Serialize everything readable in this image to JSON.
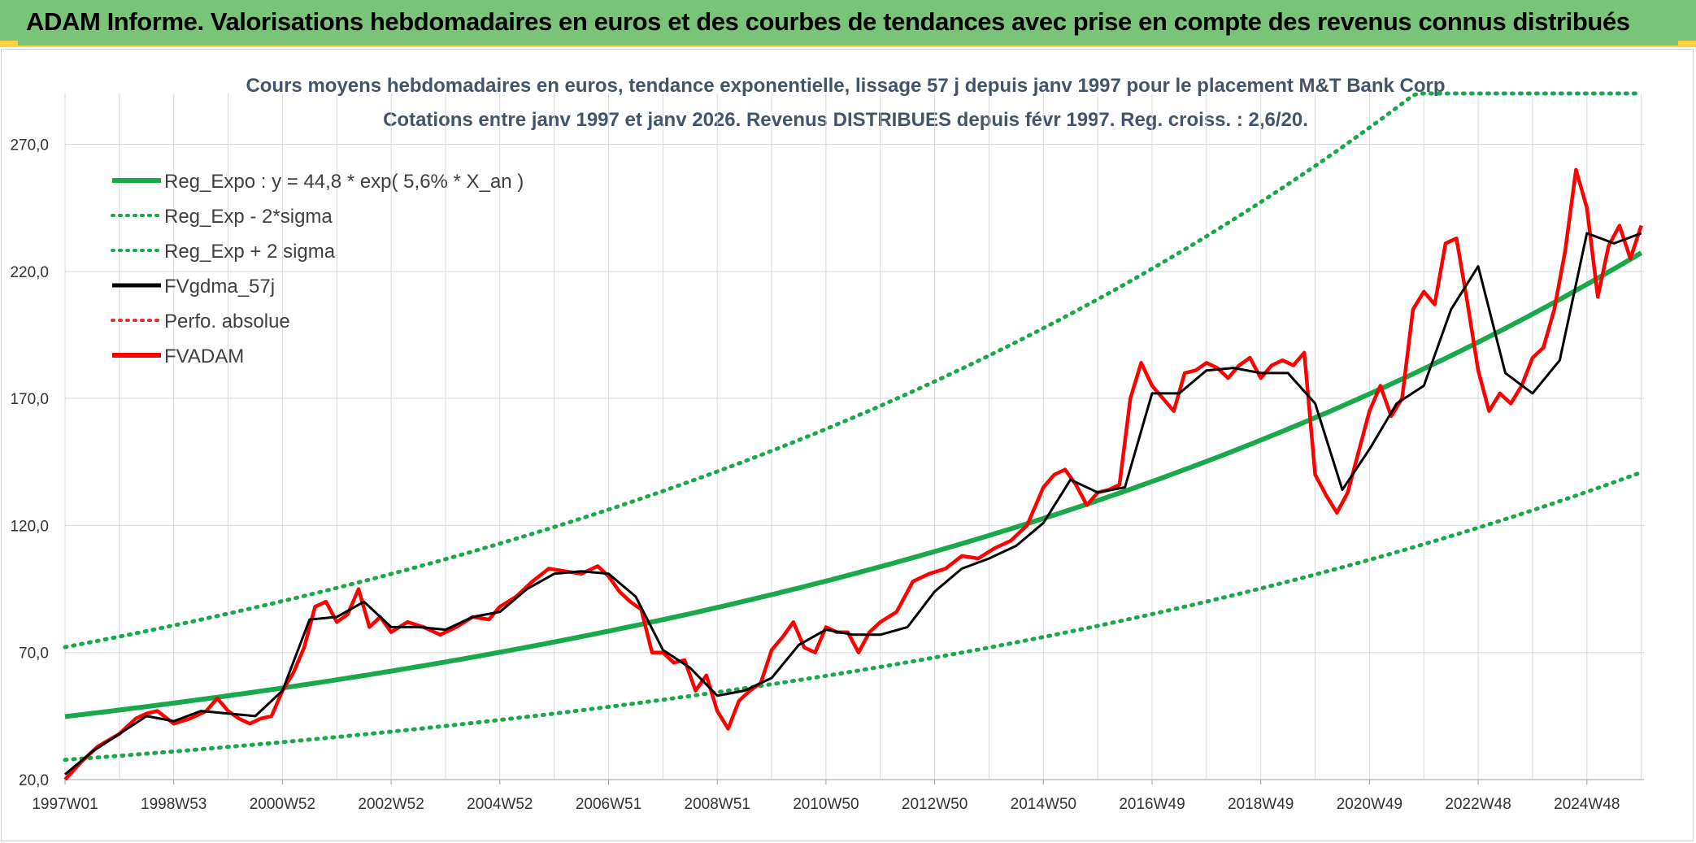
{
  "header": {
    "title": "ADAM Informe. Valorisations hebdomadaires en euros et des courbes de tendances avec prise en compte des revenus connus distribués"
  },
  "colors": {
    "header_bg": "#7ac47a",
    "header_border": "#ffd23f",
    "trend": "#1aa84a",
    "smooth": "#000000",
    "price": "#ff0000",
    "perfo": "#e03030",
    "grid": "#d9d9d9"
  },
  "chart_data": {
    "type": "line",
    "title_line1": "Cours moyens hebdomadaires en euros, tendance exponentielle, lissage 57 j depuis janv 1997 pour le placement M&T Bank Corp",
    "title_line2": "Cotations entre janv 1997 et janv 2026. Revenus DISTRIBUES depuis févr 1997. Reg. croiss. : 2,6/20.",
    "x_start_year": 1997.0,
    "x_end_year": 2026.05,
    "ylim": [
      20,
      290
    ],
    "y_ticks": [
      20,
      70,
      120,
      170,
      220,
      270
    ],
    "y_tick_labels": [
      "20,0",
      "70,0",
      "120,0",
      "170,0",
      "220,0",
      "270,0"
    ],
    "x_ticks": [
      {
        "label": "1997W01",
        "year": 1997.0
      },
      {
        "label": "1998W53",
        "year": 1999.0
      },
      {
        "label": "2000W52",
        "year": 2001.0
      },
      {
        "label": "2002W52",
        "year": 2003.0
      },
      {
        "label": "2004W52",
        "year": 2005.0
      },
      {
        "label": "2006W51",
        "year": 2007.0
      },
      {
        "label": "2008W51",
        "year": 2009.0
      },
      {
        "label": "2010W50",
        "year": 2011.0
      },
      {
        "label": "2012W50",
        "year": 2013.0
      },
      {
        "label": "2014W50",
        "year": 2015.0
      },
      {
        "label": "2016W49",
        "year": 2017.0
      },
      {
        "label": "2018W49",
        "year": 2019.0
      },
      {
        "label": "2020W49",
        "year": 2021.0
      },
      {
        "label": "2022W48",
        "year": 2023.0
      },
      {
        "label": "2024W48",
        "year": 2025.0
      }
    ],
    "legend": [
      {
        "key": "reg",
        "label": "Reg_Expo : y = 44,8 * exp( 5,6% *  X_an )",
        "style": "solid-green"
      },
      {
        "key": "low",
        "label": "Reg_Exp - 2*sigma",
        "style": "dotted-green"
      },
      {
        "key": "high",
        "label": "Reg_Exp + 2 sigma",
        "style": "dotted-green"
      },
      {
        "key": "smooth",
        "label": "FVgdma_57j",
        "style": "solid-black"
      },
      {
        "key": "perfo",
        "label": "Perfo. absolue",
        "style": "dotted-red"
      },
      {
        "key": "price",
        "label": "FVADAM",
        "style": "solid-red"
      }
    ],
    "regression": {
      "a": 44.8,
      "rate": 0.056,
      "low_factor": 0.62,
      "high_factor": 1.61,
      "y_cap": 290
    },
    "series": [
      {
        "name": "FVADAM",
        "x": [
          1997.0,
          1997.3,
          1997.6,
          1998.0,
          1998.3,
          1998.5,
          1998.7,
          1999.0,
          1999.3,
          1999.6,
          1999.8,
          2000.0,
          2000.2,
          2000.4,
          2000.6,
          2000.8,
          2001.0,
          2001.2,
          2001.4,
          2001.6,
          2001.8,
          2002.0,
          2002.2,
          2002.4,
          2002.6,
          2002.8,
          2003.0,
          2003.3,
          2003.6,
          2003.9,
          2004.2,
          2004.5,
          2004.8,
          2005.0,
          2005.3,
          2005.6,
          2005.9,
          2006.2,
          2006.5,
          2006.8,
          2007.0,
          2007.2,
          2007.4,
          2007.6,
          2007.8,
          2008.0,
          2008.2,
          2008.4,
          2008.6,
          2008.8,
          2009.0,
          2009.2,
          2009.4,
          2009.6,
          2009.8,
          2010.0,
          2010.2,
          2010.4,
          2010.6,
          2010.8,
          2011.0,
          2011.2,
          2011.4,
          2011.6,
          2011.8,
          2012.0,
          2012.3,
          2012.6,
          2012.9,
          2013.2,
          2013.5,
          2013.8,
          2014.1,
          2014.4,
          2014.7,
          2015.0,
          2015.2,
          2015.4,
          2015.6,
          2015.8,
          2016.0,
          2016.2,
          2016.4,
          2016.6,
          2016.8,
          2017.0,
          2017.2,
          2017.4,
          2017.6,
          2017.8,
          2018.0,
          2018.2,
          2018.4,
          2018.6,
          2018.8,
          2019.0,
          2019.2,
          2019.4,
          2019.6,
          2019.8,
          2020.0,
          2020.2,
          2020.4,
          2020.6,
          2020.8,
          2021.0,
          2021.2,
          2021.4,
          2021.6,
          2021.8,
          2022.0,
          2022.2,
          2022.4,
          2022.6,
          2022.8,
          2023.0,
          2023.2,
          2023.4,
          2023.6,
          2023.8,
          2024.0,
          2024.2,
          2024.4,
          2024.6,
          2024.8,
          2025.0,
          2025.2,
          2025.4,
          2025.6,
          2025.8,
          2026.0
        ],
        "values": [
          20,
          27,
          33,
          38,
          44,
          46,
          47,
          42,
          44,
          47,
          52,
          47,
          44,
          42,
          44,
          45,
          55,
          62,
          72,
          88,
          90,
          82,
          85,
          95,
          80,
          84,
          78,
          82,
          80,
          77,
          80,
          84,
          83,
          88,
          92,
          98,
          103,
          102,
          101,
          104,
          100,
          94,
          90,
          87,
          70,
          70,
          66,
          67,
          55,
          61,
          47,
          40,
          51,
          55,
          58,
          71,
          76,
          82,
          72,
          70,
          80,
          78,
          78,
          70,
          78,
          82,
          86,
          98,
          101,
          103,
          108,
          107,
          111,
          114,
          120,
          135,
          140,
          142,
          136,
          128,
          133,
          134,
          136,
          170,
          184,
          175,
          170,
          165,
          180,
          181,
          184,
          182,
          178,
          183,
          186,
          178,
          183,
          185,
          183,
          188,
          140,
          132,
          125,
          133,
          149,
          165,
          175,
          163,
          170,
          205,
          212,
          207,
          231,
          233,
          208,
          181,
          165,
          172,
          168,
          175,
          186,
          190,
          205,
          228,
          260,
          245,
          210,
          230,
          238,
          225,
          238
        ],
        "color": "#ff0000"
      },
      {
        "name": "FVgdma_57j",
        "x": [
          1997.0,
          1997.5,
          1998.0,
          1998.5,
          1999.0,
          1999.5,
          2000.0,
          2000.5,
          2001.0,
          2001.5,
          2002.0,
          2002.5,
          2003.0,
          2003.5,
          2004.0,
          2004.5,
          2005.0,
          2005.5,
          2006.0,
          2006.5,
          2007.0,
          2007.5,
          2008.0,
          2008.5,
          2009.0,
          2009.5,
          2010.0,
          2010.5,
          2011.0,
          2011.5,
          2012.0,
          2012.5,
          2013.0,
          2013.5,
          2014.0,
          2014.5,
          2015.0,
          2015.5,
          2016.0,
          2016.5,
          2017.0,
          2017.5,
          2018.0,
          2018.5,
          2019.0,
          2019.5,
          2020.0,
          2020.5,
          2021.0,
          2021.5,
          2022.0,
          2022.5,
          2023.0,
          2023.5,
          2024.0,
          2024.5,
          2025.0,
          2025.5,
          2026.0
        ],
        "values": [
          22,
          31,
          38,
          45,
          43,
          47,
          46,
          45,
          55,
          83,
          84,
          90,
          80,
          80,
          79,
          84,
          86,
          95,
          101,
          102,
          101,
          92,
          71,
          64,
          53,
          55,
          60,
          73,
          79,
          77,
          77,
          80,
          94,
          103,
          107,
          112,
          121,
          138,
          133,
          135,
          172,
          172,
          181,
          182,
          180,
          180,
          168,
          134,
          150,
          168,
          175,
          205,
          222,
          180,
          172,
          185,
          235,
          231,
          235
        ],
        "color": "#000000"
      }
    ]
  }
}
